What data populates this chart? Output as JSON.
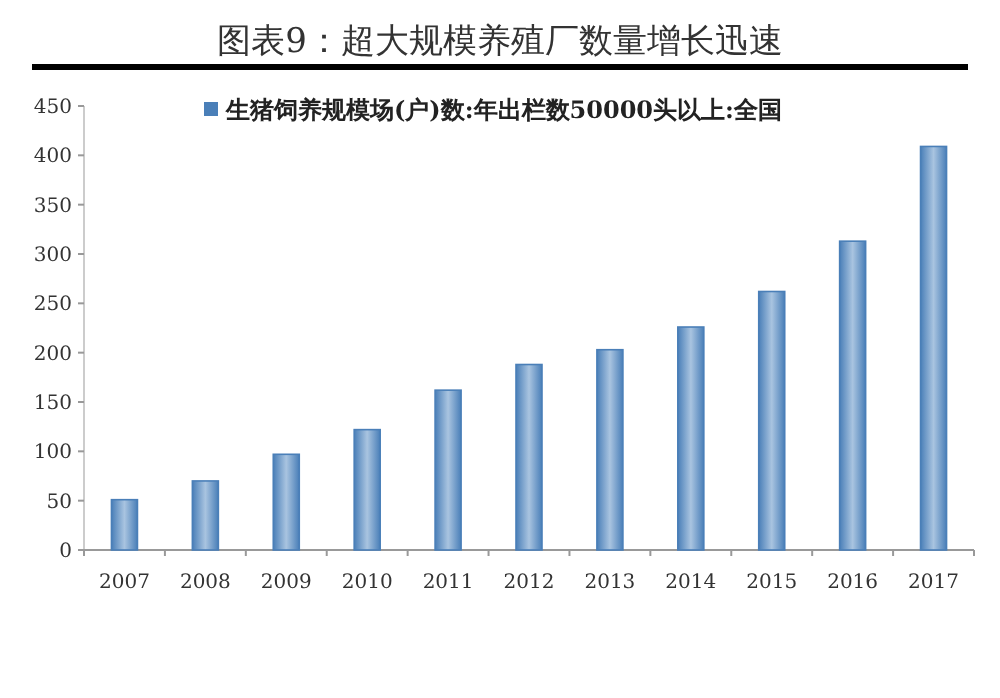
{
  "chart_data": {
    "type": "bar",
    "title": "图表9：超大规模养殖厂数量增长迅速",
    "categories": [
      "2007",
      "2008",
      "2009",
      "2010",
      "2011",
      "2012",
      "2013",
      "2014",
      "2015",
      "2016",
      "2017"
    ],
    "series": [
      {
        "name": "生猪饲养规模场(户)数:年出栏数50000头以上:全国",
        "color": "#4a7fb8",
        "values": [
          51,
          70,
          97,
          122,
          162,
          188,
          203,
          226,
          262,
          313,
          409
        ]
      }
    ],
    "ylim": [
      0,
      450
    ],
    "yticks": [
      0,
      50,
      100,
      150,
      200,
      250,
      300,
      350,
      400,
      450
    ],
    "grid": false,
    "legend": "top left"
  }
}
